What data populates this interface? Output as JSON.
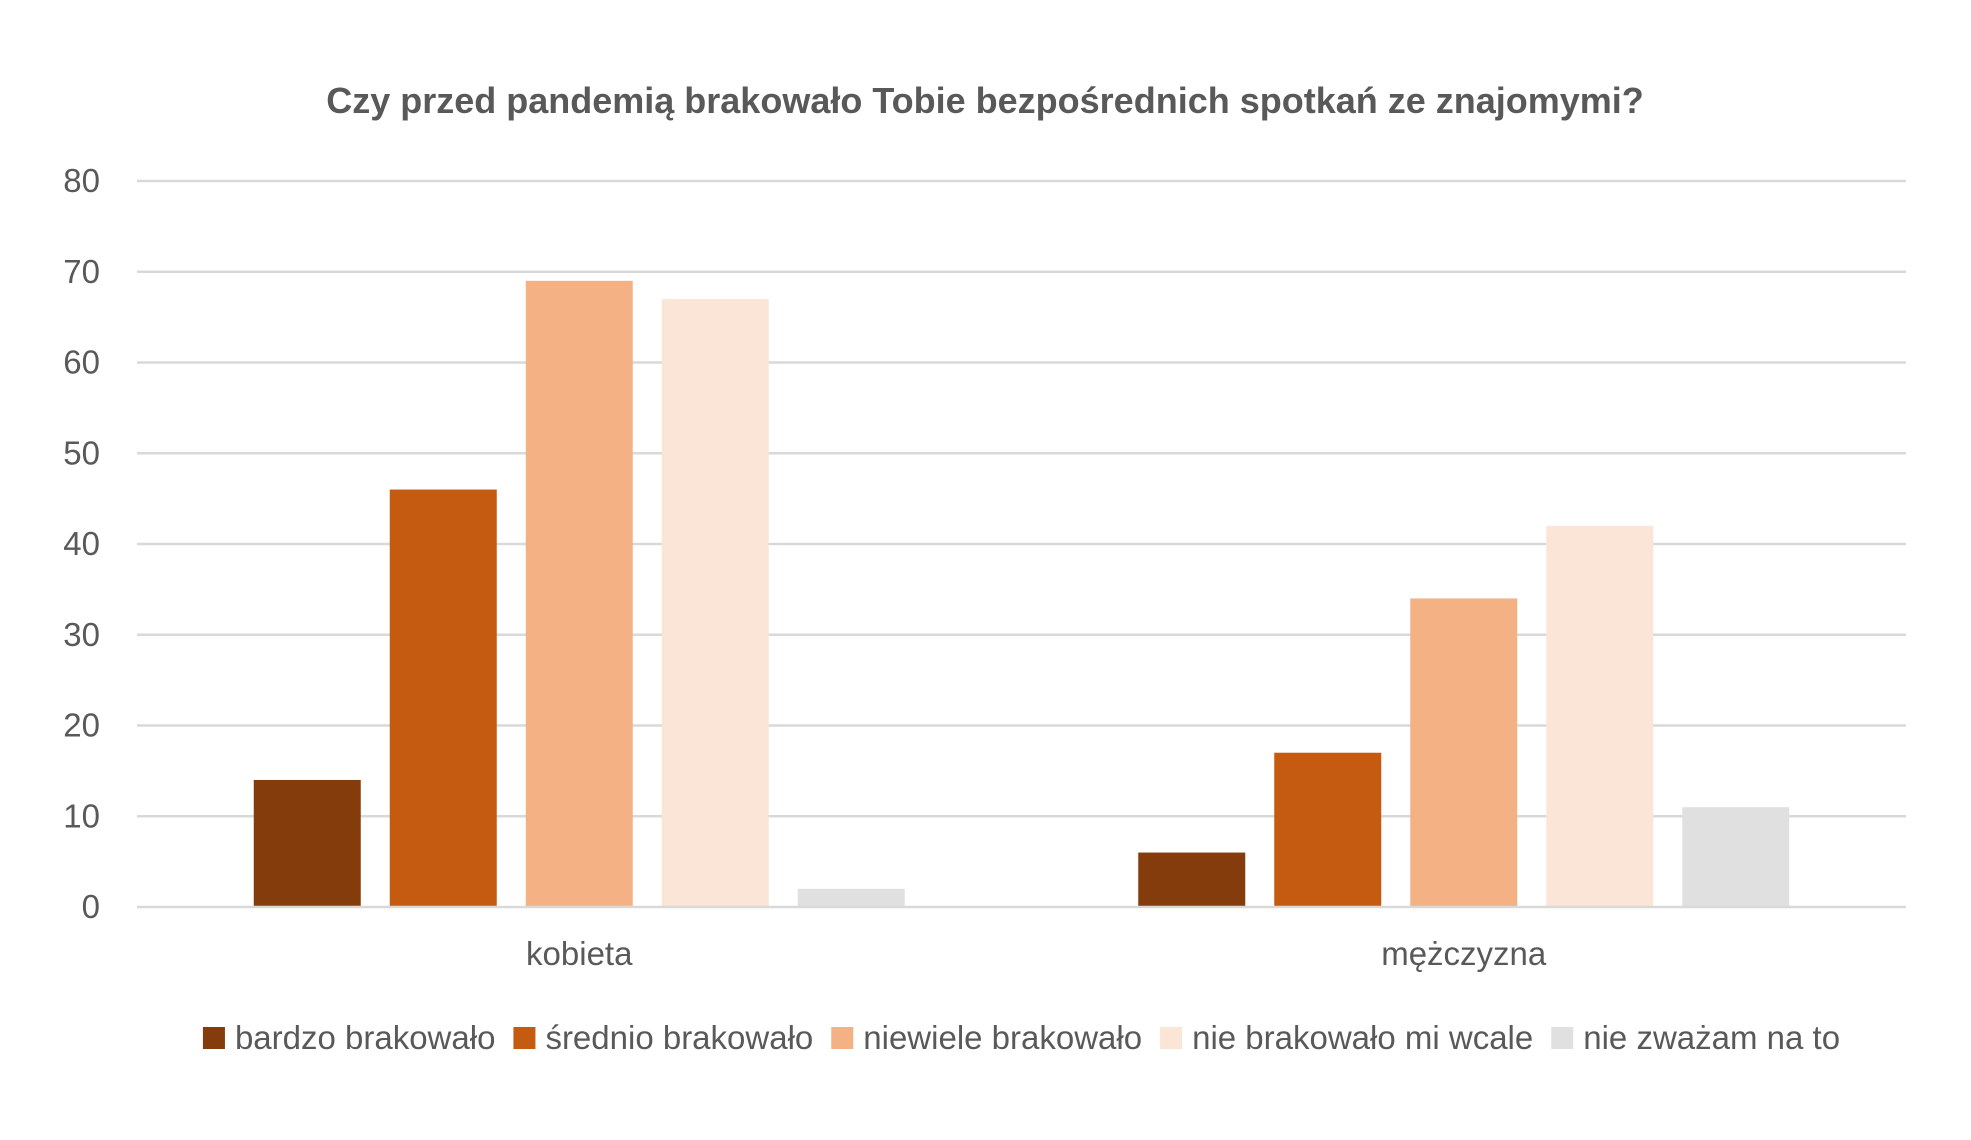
{
  "chart_data": {
    "type": "bar",
    "title": "Czy przed pandemią brakowało Tobie bezpośrednich spotkań ze znajomymi?",
    "xlabel": "",
    "ylabel": "",
    "categories": [
      "kobieta",
      "mężczyzna"
    ],
    "series": [
      {
        "name": "bardzo brakowało",
        "color": "#843c0c",
        "values": [
          14,
          6
        ]
      },
      {
        "name": "średnio brakowało",
        "color": "#c55a11",
        "values": [
          46,
          17
        ]
      },
      {
        "name": "niewiele brakowało",
        "color": "#f4b183",
        "values": [
          69,
          34
        ]
      },
      {
        "name": "nie brakowało mi wcale",
        "color": "#fbe5d6",
        "values": [
          67,
          42
        ]
      },
      {
        "name": "nie zważam na to",
        "color": "#e0e0e0",
        "values": [
          2,
          11
        ]
      }
    ],
    "ylim": [
      0,
      80
    ],
    "yticks": [
      0,
      10,
      20,
      30,
      40,
      50,
      60,
      70,
      80
    ],
    "grid": true,
    "legend_position": "bottom"
  }
}
